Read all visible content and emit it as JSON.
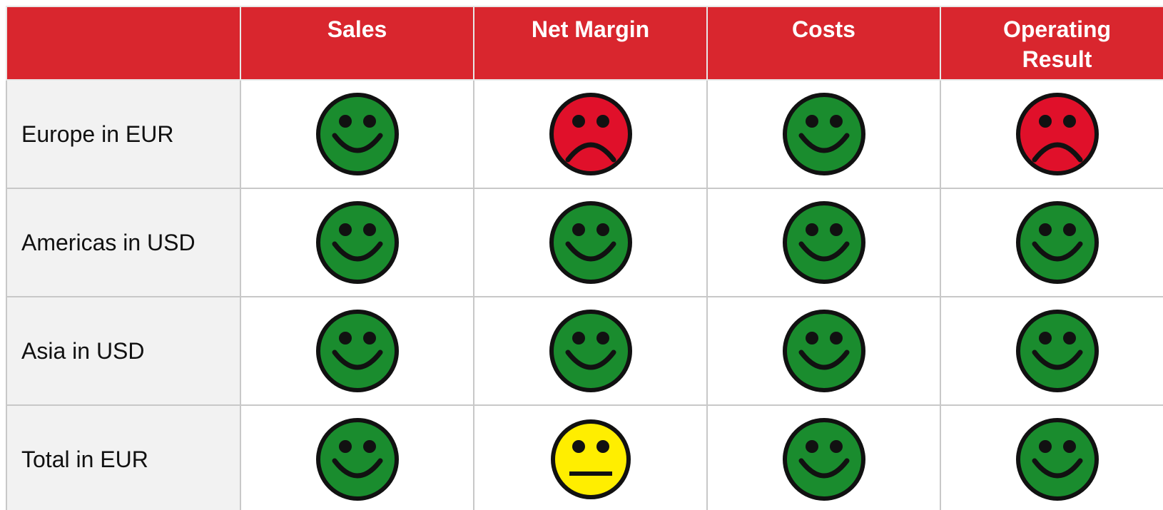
{
  "table": {
    "columns": [
      "Sales",
      "Net Margin",
      "Costs",
      "Operating Result"
    ],
    "rows": [
      {
        "label": "Europe in EUR"
      },
      {
        "label": "Americas in USD"
      },
      {
        "label": "Asia in USD"
      },
      {
        "label": "Total in EUR"
      }
    ]
  }
}
